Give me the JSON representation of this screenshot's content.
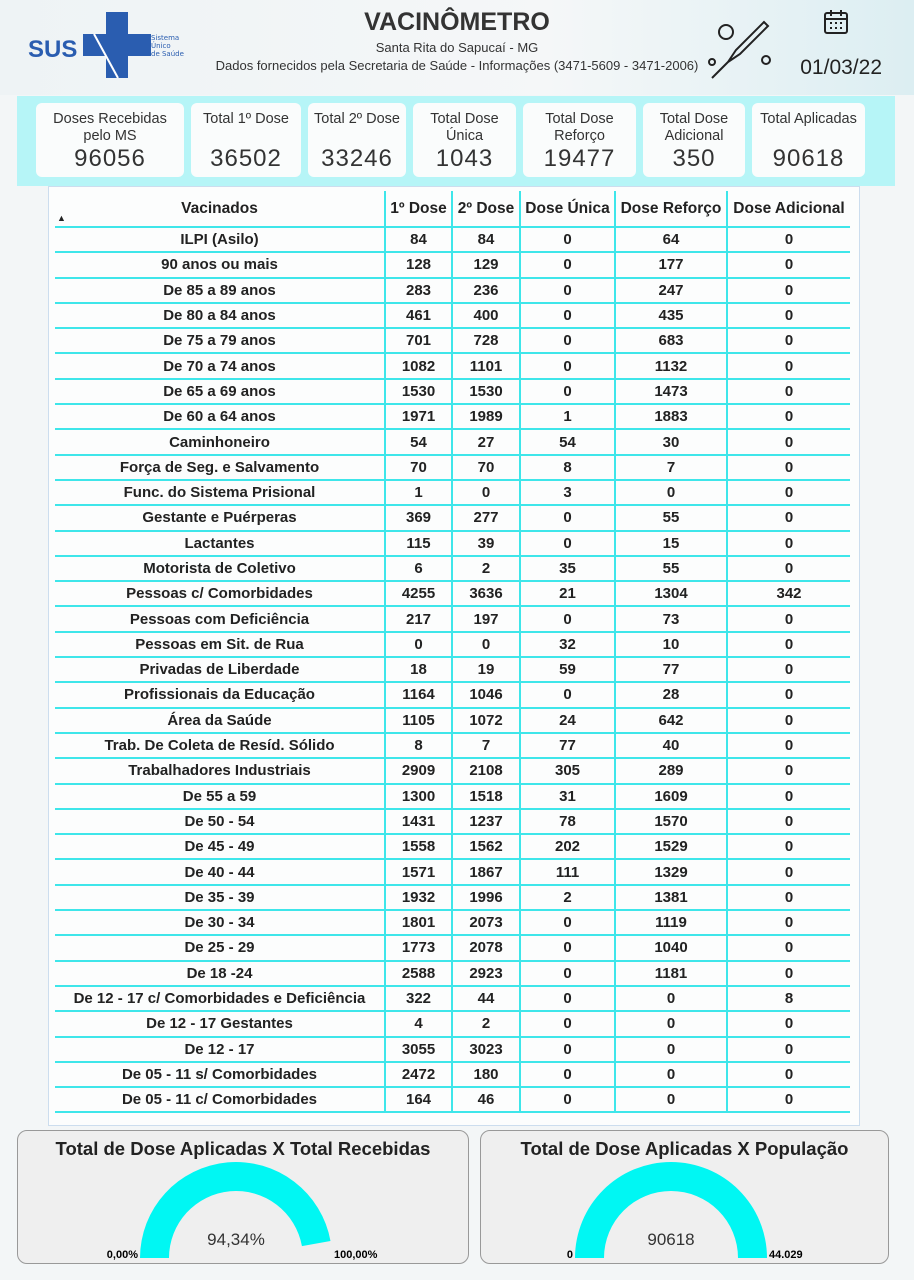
{
  "header": {
    "logo_text": "SUS",
    "logo_sub": [
      "Sistema",
      "Único",
      "de Saúde"
    ],
    "title": "VACINÔMETRO",
    "city": "Santa Rita do Sapucaí - MG",
    "source": "Dados fornecidos pela Secretaria de Saúde - Informações (3471-5609 - 3471-2006)",
    "date": "01/03/22",
    "icons": [
      "vaccine-syringe-icon",
      "calendar-icon"
    ]
  },
  "cards": [
    {
      "label": "Doses Recebidas pelo MS",
      "value": "96056"
    },
    {
      "label": "Total 1º Dose",
      "value": "36502"
    },
    {
      "label": "Total 2º Dose",
      "value": "33246"
    },
    {
      "label": "Total Dose Única",
      "value": "1043"
    },
    {
      "label": "Total Dose Reforço",
      "value": "19477"
    },
    {
      "label": "Total Dose Adicional",
      "value": "350"
    },
    {
      "label": "Total Aplicadas",
      "value": "90618"
    }
  ],
  "table": {
    "columns": [
      "Vacinados",
      "1º Dose",
      "2º Dose",
      "Dose Única",
      "Dose Reforço",
      "Dose Adicional"
    ],
    "rows": [
      [
        "ILPI (Asilo)",
        "84",
        "84",
        "0",
        "64",
        "0"
      ],
      [
        "90 anos ou mais",
        "128",
        "129",
        "0",
        "177",
        "0"
      ],
      [
        "De 85 a 89 anos",
        "283",
        "236",
        "0",
        "247",
        "0"
      ],
      [
        "De 80 a 84 anos",
        "461",
        "400",
        "0",
        "435",
        "0"
      ],
      [
        "De 75 a 79 anos",
        "701",
        "728",
        "0",
        "683",
        "0"
      ],
      [
        "De 70 a 74 anos",
        "1082",
        "1101",
        "0",
        "1132",
        "0"
      ],
      [
        "De 65 a 69 anos",
        "1530",
        "1530",
        "0",
        "1473",
        "0"
      ],
      [
        "De 60 a 64 anos",
        "1971",
        "1989",
        "1",
        "1883",
        "0"
      ],
      [
        "Caminhoneiro",
        "54",
        "27",
        "54",
        "30",
        "0"
      ],
      [
        "Força de Seg. e Salvamento",
        "70",
        "70",
        "8",
        "7",
        "0"
      ],
      [
        "Func. do Sistema Prisional",
        "1",
        "0",
        "3",
        "0",
        "0"
      ],
      [
        "Gestante e Puérperas",
        "369",
        "277",
        "0",
        "55",
        "0"
      ],
      [
        "Lactantes",
        "115",
        "39",
        "0",
        "15",
        "0"
      ],
      [
        "Motorista de Coletivo",
        "6",
        "2",
        "35",
        "55",
        "0"
      ],
      [
        "Pessoas c/ Comorbidades",
        "4255",
        "3636",
        "21",
        "1304",
        "342"
      ],
      [
        "Pessoas com Deficiência",
        "217",
        "197",
        "0",
        "73",
        "0"
      ],
      [
        "Pessoas em Sit. de Rua",
        "0",
        "0",
        "32",
        "10",
        "0"
      ],
      [
        "Privadas de Liberdade",
        "18",
        "19",
        "59",
        "77",
        "0"
      ],
      [
        "Profissionais da Educação",
        "1164",
        "1046",
        "0",
        "28",
        "0"
      ],
      [
        "Área da Saúde",
        "1105",
        "1072",
        "24",
        "642",
        "0"
      ],
      [
        "Trab. De Coleta de Resíd. Sólido",
        "8",
        "7",
        "77",
        "40",
        "0"
      ],
      [
        "Trabalhadores Industriais",
        "2909",
        "2108",
        "305",
        "289",
        "0"
      ],
      [
        "De 55 a 59",
        "1300",
        "1518",
        "31",
        "1609",
        "0"
      ],
      [
        "De 50 - 54",
        "1431",
        "1237",
        "78",
        "1570",
        "0"
      ],
      [
        "De 45 - 49",
        "1558",
        "1562",
        "202",
        "1529",
        "0"
      ],
      [
        "De 40 - 44",
        "1571",
        "1867",
        "111",
        "1329",
        "0"
      ],
      [
        "De 35 - 39",
        "1932",
        "1996",
        "2",
        "1381",
        "0"
      ],
      [
        "De 30 - 34",
        "1801",
        "2073",
        "0",
        "1119",
        "0"
      ],
      [
        "De 25 - 29",
        "1773",
        "2078",
        "0",
        "1040",
        "0"
      ],
      [
        "De 18 -24",
        "2588",
        "2923",
        "0",
        "1181",
        "0"
      ],
      [
        "De 12 - 17 c/ Comorbidades e Deficiência",
        "322",
        "44",
        "0",
        "0",
        "8"
      ],
      [
        "De 12 - 17 Gestantes",
        "4",
        "2",
        "0",
        "0",
        "0"
      ],
      [
        "De 12 - 17",
        "3055",
        "3023",
        "0",
        "0",
        "0"
      ],
      [
        "De 05 - 11 s/ Comorbidades",
        "2472",
        "180",
        "0",
        "0",
        "0"
      ],
      [
        "De 05 - 11 c/ Comorbidades",
        "164",
        "46",
        "0",
        "0",
        "0"
      ]
    ]
  },
  "gauges": [
    {
      "title": "Total de Dose Aplicadas X Total Recebidas",
      "value_label": "94,34%",
      "min_label": "0,00%",
      "max_label": "100,00%",
      "fraction": 0.9434
    },
    {
      "title": "Total de Dose Aplicadas X População",
      "value_label": "90618",
      "min_label": "0",
      "max_label": "44.029",
      "fraction": 1
    }
  ],
  "colors": {
    "accent": "#00f7f3",
    "grid": "#3ee6ea",
    "card_band": "#b6f5f7"
  }
}
